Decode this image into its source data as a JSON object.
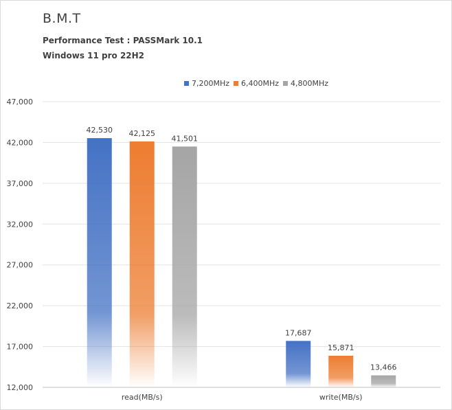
{
  "chart_data": {
    "type": "bar",
    "title": "B.M.T",
    "subtitle_lines": [
      "Performance Test : PASSMark 10.1",
      "Windows 11 pro 22H2"
    ],
    "xlabel": "",
    "ylabel": "",
    "categories": [
      "read(MB/s)",
      "write(MB/s)"
    ],
    "series": [
      {
        "name": "7,200MHz",
        "color": "#4472c4",
        "values": [
          42530,
          17687
        ],
        "labels": [
          "42,530",
          "17,687"
        ]
      },
      {
        "name": "6,400MHz",
        "color": "#ed7d31",
        "values": [
          42125,
          15871
        ],
        "labels": [
          "42,125",
          "15,871"
        ]
      },
      {
        "name": "4,800MHz",
        "color": "#a5a5a5",
        "values": [
          41501,
          13466
        ],
        "labels": [
          "41,501",
          "13,466"
        ]
      }
    ],
    "ylim": [
      12000,
      47000
    ],
    "yticks": [
      12000,
      17000,
      22000,
      27000,
      32000,
      37000,
      42000,
      47000
    ],
    "ytick_labels": [
      "12,000",
      "17,000",
      "22,000",
      "27,000",
      "32,000",
      "37,000",
      "42,000",
      "47,000"
    ],
    "grid": true,
    "legend_position": "top-right",
    "bar_style": "gradient fading to white at base"
  }
}
